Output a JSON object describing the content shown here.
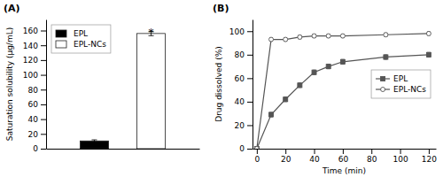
{
  "chart_data": [
    {
      "type": "bar",
      "title": "(A)",
      "categories": [
        "EPL",
        "EPL-NCs"
      ],
      "values": [
        10.5,
        156.0
      ],
      "errors": [
        1.5,
        3.0
      ],
      "colors": [
        "black",
        "white"
      ],
      "ylabel": "Saturation solubility (μg/mL)",
      "ylim": [
        0,
        175
      ],
      "yticks": [
        0,
        20,
        40,
        60,
        80,
        100,
        120,
        140,
        160
      ],
      "tick_labels": "y",
      "legend": "upper left",
      "annotations": [
        {
          "text": "*",
          "category": "EPL-NCs",
          "y": 161
        }
      ]
    },
    {
      "type": "line",
      "title": "(B)",
      "x": [
        0,
        10,
        20,
        30,
        40,
        50,
        60,
        90,
        120
      ],
      "series": [
        {
          "name": "EPL",
          "color": "#555555",
          "marker": "square",
          "values": [
            0,
            29,
            42,
            54,
            65,
            70,
            74,
            78,
            80
          ],
          "errors": [
            0,
            2,
            2,
            2,
            2,
            2,
            2,
            2,
            2
          ]
        },
        {
          "name": "EPL-NCs",
          "color": "#555555",
          "marker": "circle-open",
          "values": [
            0,
            93,
            93,
            95,
            96,
            96,
            96,
            97,
            98
          ],
          "errors": [
            0,
            1.5,
            1.5,
            1.5,
            1.5,
            1.5,
            1.5,
            1.5,
            1.5
          ]
        }
      ],
      "xlabel": "Time (min)",
      "ylabel": "Drug dissolved (%)",
      "xlim": [
        -3,
        125
      ],
      "ylim": [
        0,
        110
      ],
      "xticks": [
        0,
        20,
        40,
        60,
        80,
        100,
        120
      ],
      "yticks": [
        0,
        20,
        40,
        60,
        80,
        100
      ],
      "legend": "right"
    }
  ]
}
